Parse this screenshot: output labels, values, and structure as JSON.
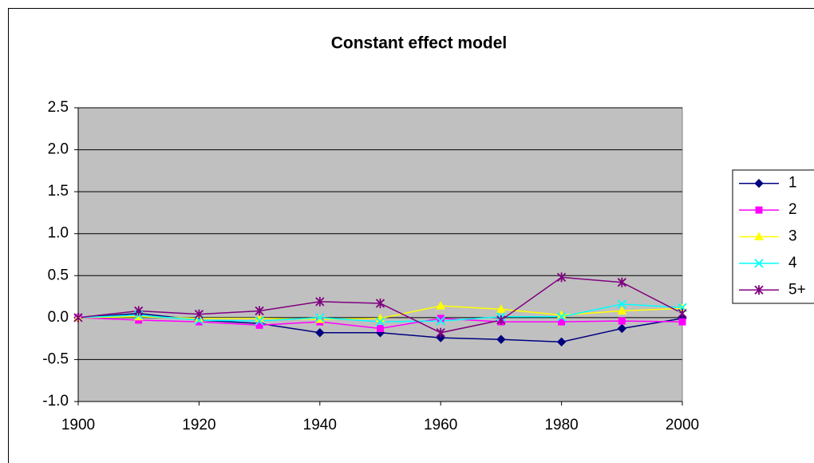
{
  "chart_data": {
    "type": "line",
    "title": "Constant effect model",
    "x": [
      1900,
      1910,
      1920,
      1930,
      1940,
      1950,
      1960,
      1970,
      1980,
      1990,
      2000
    ],
    "xlim": [
      1900,
      2000
    ],
    "xticks": [
      1900,
      1920,
      1940,
      1960,
      1980,
      2000
    ],
    "ylim": [
      -1.0,
      2.5
    ],
    "yticks": [
      {
        "value": -1.0,
        "label": "-1.0"
      },
      -0.5,
      {
        "value": 0.0,
        "label": "0.0"
      },
      0.5,
      {
        "value": 1.0,
        "label": "1.0"
      },
      1.5,
      {
        "value": 2.0,
        "label": "2.0"
      },
      2.5
    ],
    "grid": true,
    "plot_background": "#c0c0c0",
    "legend": "right",
    "series": [
      {
        "name": "1",
        "color": "#000080",
        "marker": "diamond",
        "values": [
          0,
          0.05,
          -0.03,
          -0.07,
          -0.18,
          -0.18,
          -0.24,
          -0.26,
          -0.29,
          -0.13,
          -0.01
        ]
      },
      {
        "name": "2",
        "color": "#ff00ff",
        "marker": "square",
        "values": [
          0,
          -0.03,
          -0.05,
          -0.09,
          -0.05,
          -0.13,
          -0.01,
          -0.05,
          -0.05,
          -0.04,
          -0.05
        ]
      },
      {
        "name": "3",
        "color": "#ffff00",
        "marker": "triangle",
        "values": [
          0,
          0.01,
          -0.01,
          -0.01,
          -0.02,
          -0.01,
          0.14,
          0.1,
          0.03,
          0.08,
          0.11
        ]
      },
      {
        "name": "4",
        "color": "#00ffff",
        "marker": "x",
        "values": [
          0,
          0.03,
          -0.03,
          -0.04,
          0.0,
          -0.05,
          -0.04,
          0.01,
          0.01,
          0.16,
          0.12
        ]
      },
      {
        "name": "5+",
        "color": "#800080",
        "marker": "asterisk",
        "values": [
          0,
          0.08,
          0.04,
          0.08,
          0.19,
          0.17,
          -0.18,
          -0.03,
          0.48,
          0.42,
          0.05
        ]
      }
    ]
  }
}
